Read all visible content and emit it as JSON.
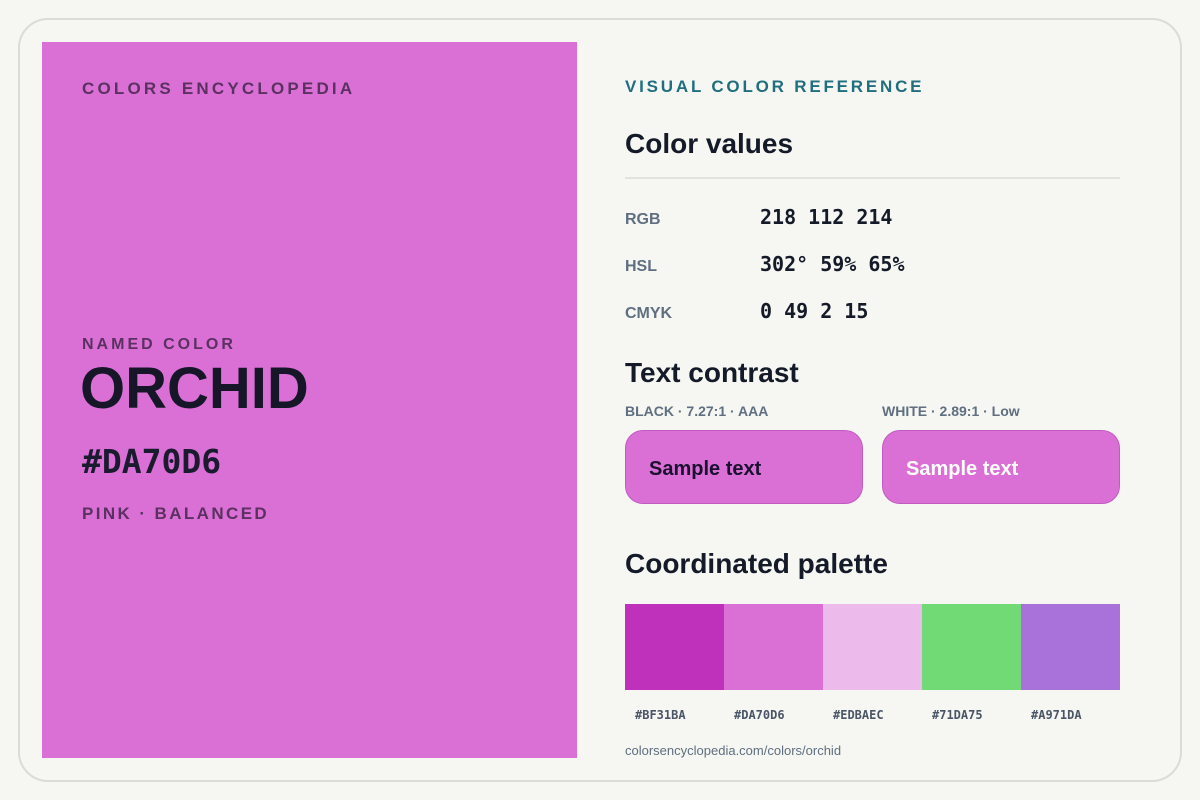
{
  "brand": "COLORS ENCYCLOPEDIA",
  "color": {
    "named_label": "NAMED COLOR",
    "name": "ORCHID",
    "hex": "#DA70D6",
    "family": "PINK · BALANCED",
    "swatch_color": "#DA70D6"
  },
  "reference": {
    "kicker": "VISUAL COLOR REFERENCE",
    "values_title": "Color values",
    "values": [
      {
        "key": "RGB",
        "value": "218 112 214"
      },
      {
        "key": "HSL",
        "value": "302° 59% 65%"
      },
      {
        "key": "CMYK",
        "value": "0 49 2 15"
      }
    ],
    "contrast_title": "Text contrast",
    "contrast": [
      {
        "label": "BLACK · 7.27:1 · AAA",
        "sample": "Sample text",
        "text_color": "#1a1030"
      },
      {
        "label": "WHITE · 2.89:1 · Low",
        "sample": "Sample text",
        "text_color": "#ffffff"
      }
    ],
    "palette_title": "Coordinated palette",
    "palette": [
      {
        "hex": "#BF31BA"
      },
      {
        "hex": "#DA70D6"
      },
      {
        "hex": "#EDBAEC"
      },
      {
        "hex": "#71DA75"
      },
      {
        "hex": "#A971DA"
      }
    ],
    "url": "colorsencyclopedia.com/colors/orchid"
  }
}
